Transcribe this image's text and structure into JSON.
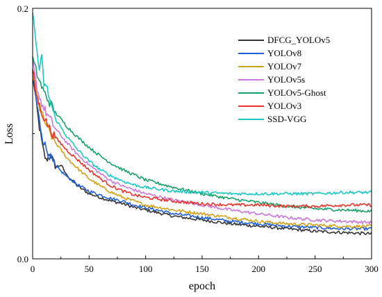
{
  "chart_data": {
    "type": "line",
    "xlabel": "epoch",
    "ylabel": "Loss",
    "xlim": [
      0,
      300
    ],
    "ylim": [
      0.0,
      0.2
    ],
    "x_ticks": [
      "0",
      "50",
      "100",
      "150",
      "200",
      "250",
      "300"
    ],
    "y_ticks": [
      "0.0",
      "0.2"
    ],
    "grid": false,
    "legend_position": "top-right",
    "series": [
      {
        "name": "DFCG_YOLOv5",
        "color": "#333333",
        "points": [
          [
            0,
            0.148
          ],
          [
            3,
            0.125
          ],
          [
            6,
            0.105
          ],
          [
            9,
            0.088
          ],
          [
            12,
            0.078
          ],
          [
            15,
            0.085
          ],
          [
            20,
            0.073
          ],
          [
            25,
            0.075
          ],
          [
            30,
            0.067
          ],
          [
            40,
            0.058
          ],
          [
            50,
            0.052
          ],
          [
            60,
            0.049
          ],
          [
            70,
            0.046
          ],
          [
            80,
            0.044
          ],
          [
            90,
            0.041
          ],
          [
            100,
            0.039
          ],
          [
            125,
            0.034
          ],
          [
            150,
            0.031
          ],
          [
            175,
            0.028
          ],
          [
            200,
            0.026
          ],
          [
            225,
            0.024
          ],
          [
            250,
            0.022
          ],
          [
            275,
            0.021
          ],
          [
            300,
            0.02
          ]
        ]
      },
      {
        "name": "YOLOv8",
        "color": "#1f5fd6",
        "points": [
          [
            0,
            0.15
          ],
          [
            3,
            0.128
          ],
          [
            6,
            0.11
          ],
          [
            9,
            0.096
          ],
          [
            12,
            0.088
          ],
          [
            15,
            0.082
          ],
          [
            20,
            0.074
          ],
          [
            25,
            0.07
          ],
          [
            30,
            0.066
          ],
          [
            40,
            0.059
          ],
          [
            50,
            0.054
          ],
          [
            60,
            0.051
          ],
          [
            70,
            0.048
          ],
          [
            80,
            0.046
          ],
          [
            90,
            0.043
          ],
          [
            100,
            0.041
          ],
          [
            125,
            0.036
          ],
          [
            150,
            0.033
          ],
          [
            175,
            0.03
          ],
          [
            200,
            0.028
          ],
          [
            225,
            0.026
          ],
          [
            250,
            0.025
          ],
          [
            275,
            0.024
          ],
          [
            300,
            0.024
          ]
        ]
      },
      {
        "name": "YOLOv7",
        "color": "#d4a017",
        "points": [
          [
            0,
            0.15
          ],
          [
            3,
            0.133
          ],
          [
            6,
            0.121
          ],
          [
            10,
            0.111
          ],
          [
            15,
            0.101
          ],
          [
            20,
            0.093
          ],
          [
            30,
            0.081
          ],
          [
            40,
            0.072
          ],
          [
            50,
            0.064
          ],
          [
            60,
            0.058
          ],
          [
            70,
            0.053
          ],
          [
            80,
            0.049
          ],
          [
            90,
            0.046
          ],
          [
            100,
            0.043
          ],
          [
            125,
            0.039
          ],
          [
            150,
            0.036
          ],
          [
            175,
            0.033
          ],
          [
            200,
            0.03
          ],
          [
            225,
            0.028
          ],
          [
            250,
            0.027
          ],
          [
            275,
            0.026
          ],
          [
            300,
            0.026
          ]
        ]
      },
      {
        "name": "YOLOv5s",
        "color": "#cc77dd",
        "points": [
          [
            0,
            0.158
          ],
          [
            3,
            0.14
          ],
          [
            6,
            0.129
          ],
          [
            10,
            0.12
          ],
          [
            15,
            0.112
          ],
          [
            20,
            0.104
          ],
          [
            30,
            0.093
          ],
          [
            40,
            0.083
          ],
          [
            50,
            0.075
          ],
          [
            60,
            0.068
          ],
          [
            70,
            0.062
          ],
          [
            80,
            0.058
          ],
          [
            90,
            0.055
          ],
          [
            100,
            0.052
          ],
          [
            125,
            0.047
          ],
          [
            150,
            0.043
          ],
          [
            175,
            0.039
          ],
          [
            200,
            0.036
          ],
          [
            225,
            0.033
          ],
          [
            250,
            0.031
          ],
          [
            275,
            0.03
          ],
          [
            300,
            0.029
          ]
        ]
      },
      {
        "name": "YOLOv5-Ghost",
        "color": "#16a067",
        "points": [
          [
            0,
            0.16
          ],
          [
            3,
            0.15
          ],
          [
            6,
            0.142
          ],
          [
            10,
            0.133
          ],
          [
            15,
            0.125
          ],
          [
            20,
            0.117
          ],
          [
            30,
            0.106
          ],
          [
            40,
            0.097
          ],
          [
            50,
            0.089
          ],
          [
            60,
            0.082
          ],
          [
            70,
            0.076
          ],
          [
            80,
            0.071
          ],
          [
            90,
            0.067
          ],
          [
            100,
            0.063
          ],
          [
            125,
            0.057
          ],
          [
            150,
            0.052
          ],
          [
            175,
            0.048
          ],
          [
            200,
            0.045
          ],
          [
            225,
            0.042
          ],
          [
            250,
            0.04
          ],
          [
            275,
            0.039
          ],
          [
            300,
            0.038
          ]
        ]
      },
      {
        "name": "YOLOv3",
        "color": "#e8322a",
        "points": [
          [
            0,
            0.152
          ],
          [
            3,
            0.132
          ],
          [
            6,
            0.122
          ],
          [
            10,
            0.113
          ],
          [
            15,
            0.104
          ],
          [
            20,
            0.097
          ],
          [
            30,
            0.087
          ],
          [
            40,
            0.079
          ],
          [
            50,
            0.071
          ],
          [
            60,
            0.064
          ],
          [
            70,
            0.058
          ],
          [
            80,
            0.054
          ],
          [
            90,
            0.051
          ],
          [
            100,
            0.049
          ],
          [
            125,
            0.046
          ],
          [
            150,
            0.044
          ],
          [
            175,
            0.043
          ],
          [
            200,
            0.043
          ],
          [
            225,
            0.042
          ],
          [
            250,
            0.042
          ],
          [
            275,
            0.043
          ],
          [
            300,
            0.043
          ]
        ]
      },
      {
        "name": "SSD-VGG",
        "color": "#1cc7c7",
        "points": [
          [
            0,
            0.196
          ],
          [
            2,
            0.18
          ],
          [
            4,
            0.165
          ],
          [
            6,
            0.15
          ],
          [
            8,
            0.16
          ],
          [
            10,
            0.14
          ],
          [
            13,
            0.135
          ],
          [
            15,
            0.128
          ],
          [
            20,
            0.112
          ],
          [
            30,
            0.098
          ],
          [
            40,
            0.087
          ],
          [
            50,
            0.078
          ],
          [
            60,
            0.071
          ],
          [
            70,
            0.066
          ],
          [
            80,
            0.062
          ],
          [
            90,
            0.059
          ],
          [
            100,
            0.057
          ],
          [
            125,
            0.054
          ],
          [
            150,
            0.053
          ],
          [
            175,
            0.052
          ],
          [
            200,
            0.052
          ],
          [
            225,
            0.052
          ],
          [
            250,
            0.052
          ],
          [
            275,
            0.053
          ],
          [
            300,
            0.053
          ]
        ]
      }
    ]
  }
}
